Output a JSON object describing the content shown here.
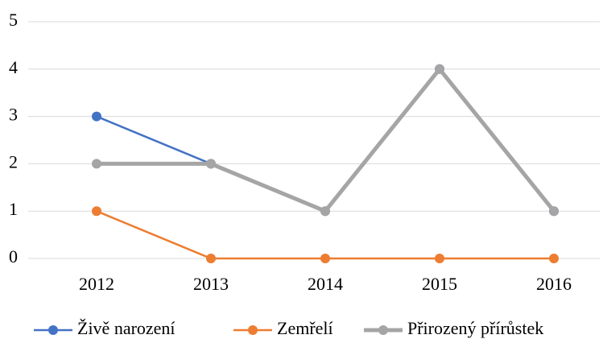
{
  "chart_data": {
    "type": "line",
    "categories": [
      "2012",
      "2013",
      "2014",
      "2015",
      "2016"
    ],
    "series": [
      {
        "name": "Živě narození",
        "color": "#4472c4",
        "values": [
          3,
          2,
          1,
          4,
          1
        ]
      },
      {
        "name": "Zemřelí",
        "color": "#ed7d31",
        "values": [
          1,
          0,
          0,
          0,
          0
        ]
      },
      {
        "name": "Přirozený přírůstek",
        "color": "#a5a5a5",
        "values": [
          2,
          2,
          1,
          4,
          1
        ]
      }
    ],
    "ylim": [
      0,
      5
    ],
    "yticks": [
      0,
      1,
      2,
      3,
      4,
      5
    ],
    "grid": true,
    "legend": "bottom"
  }
}
